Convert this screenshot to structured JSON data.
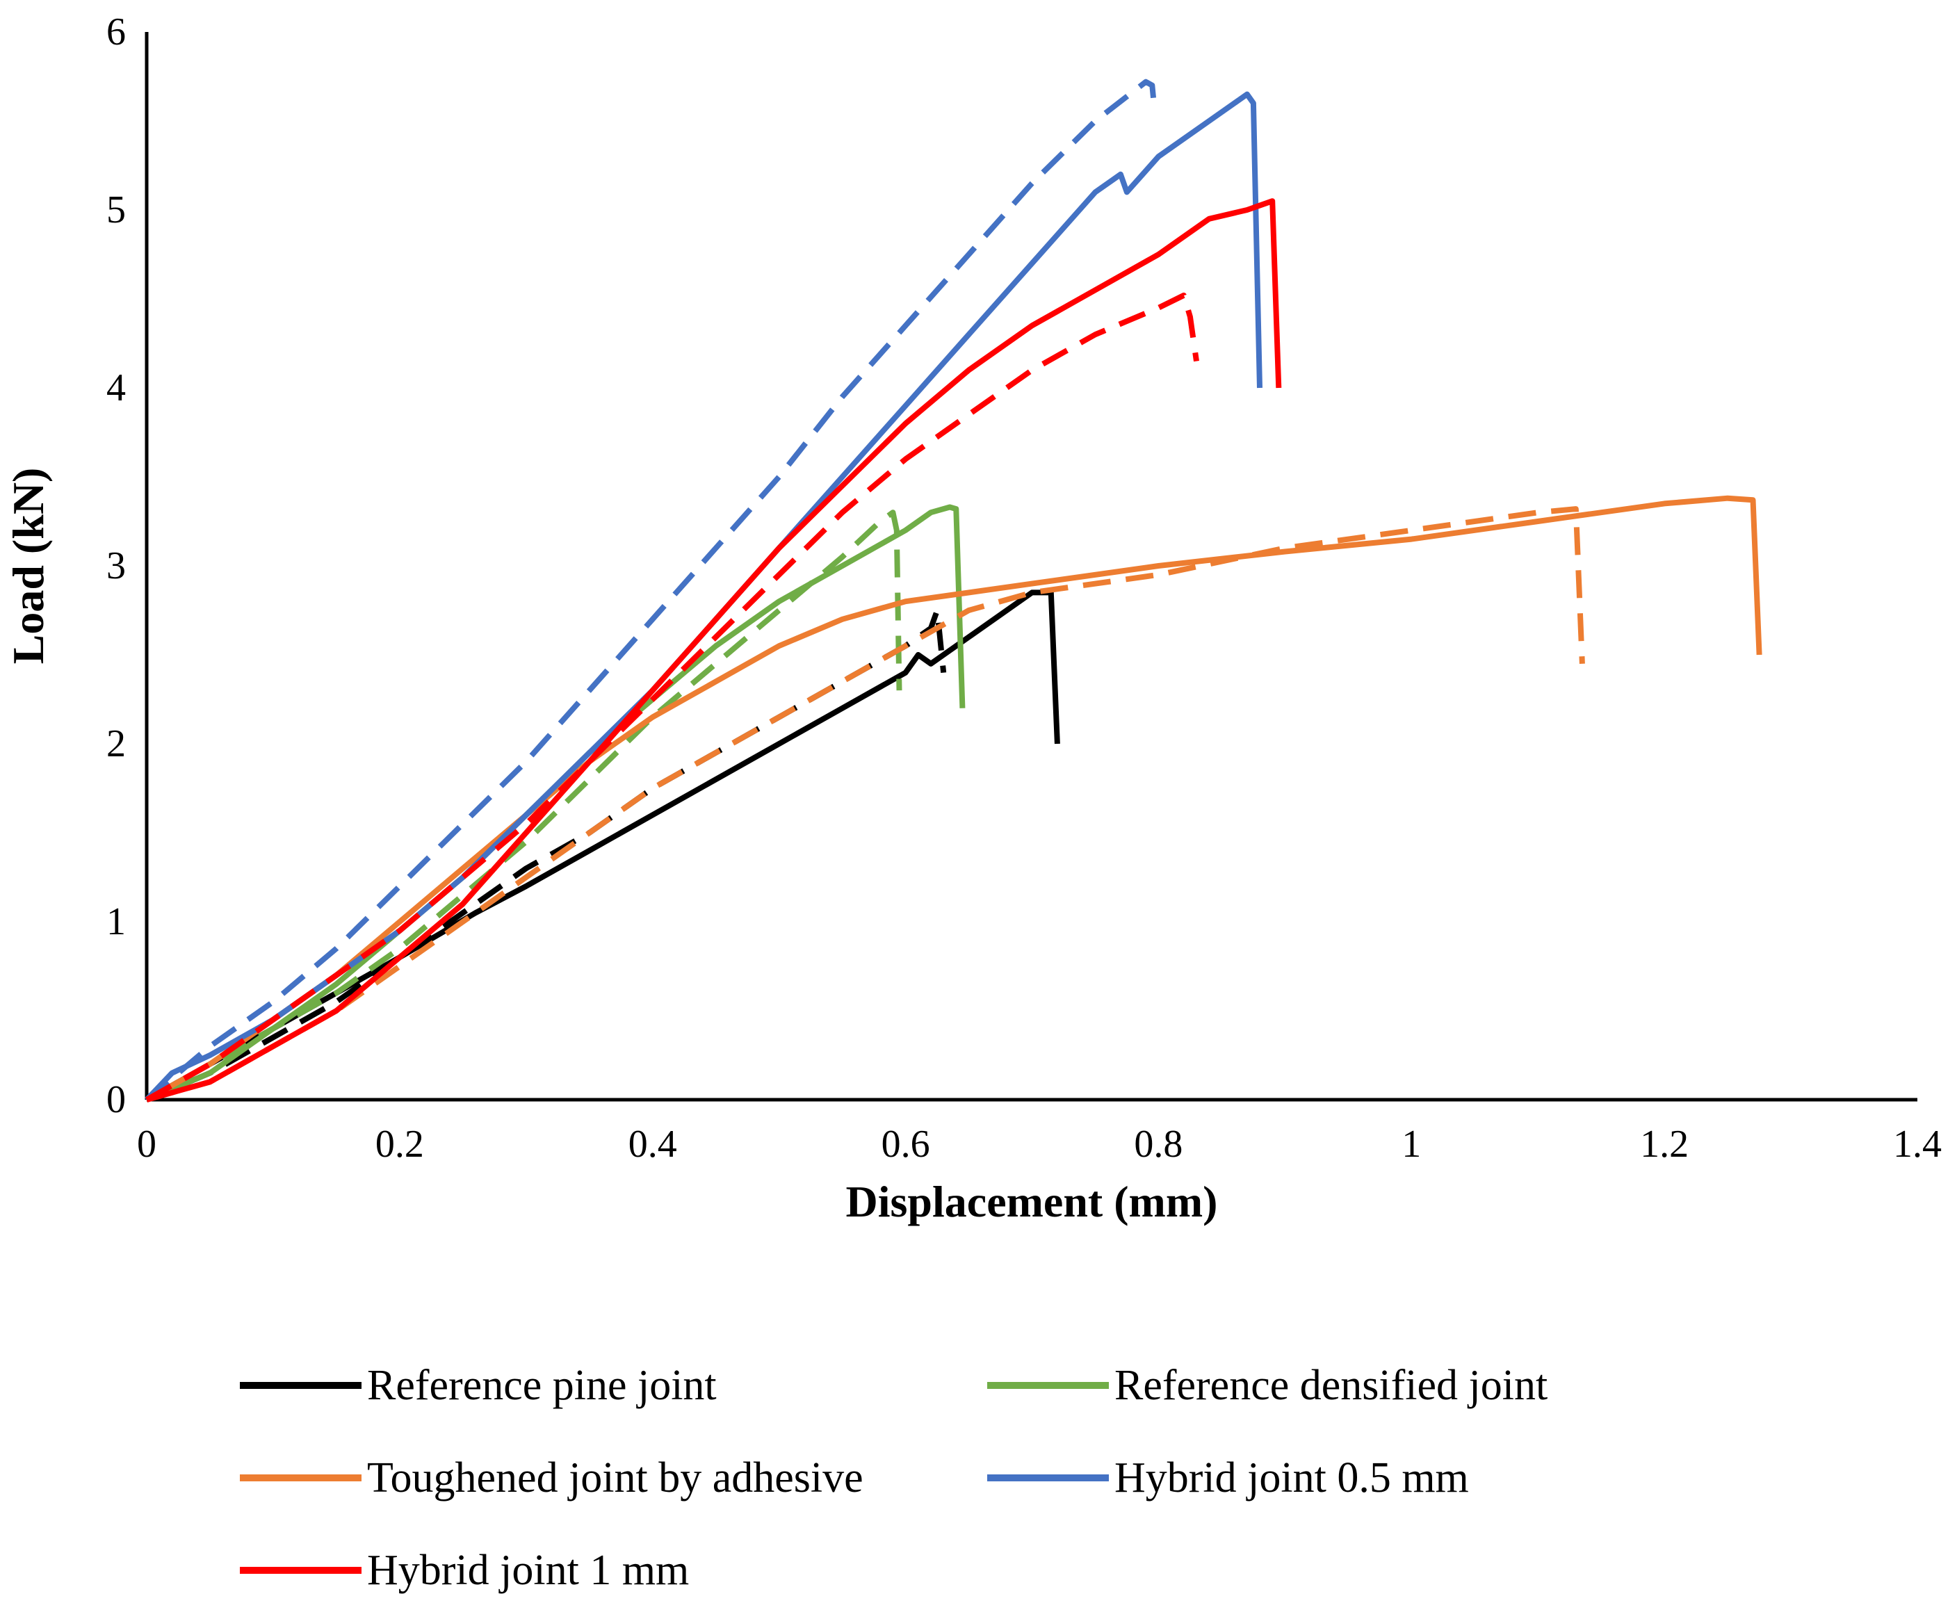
{
  "chart_data": {
    "type": "line",
    "title": "",
    "xlabel": "Displacement (mm)",
    "ylabel": "Load (kN)",
    "xlim": [
      0,
      1.4
    ],
    "ylim": [
      0,
      6
    ],
    "x_ticks": [
      "0",
      "0.2",
      "0.4",
      "0.6",
      "0.8",
      "1",
      "1.2",
      "1.4"
    ],
    "y_ticks": [
      "0",
      "1",
      "2",
      "3",
      "4",
      "5",
      "6"
    ],
    "grid": false,
    "legend_position": "bottom",
    "series": [
      {
        "name": "Reference pine joint",
        "color": "#000000",
        "points": [
          [
            0,
            0
          ],
          [
            0.05,
            0.2
          ],
          [
            0.1,
            0.4
          ],
          [
            0.15,
            0.6
          ],
          [
            0.2,
            0.8
          ],
          [
            0.26,
            1.05
          ],
          [
            0.3,
            1.2
          ],
          [
            0.35,
            1.4
          ],
          [
            0.4,
            1.6
          ],
          [
            0.5,
            2.0
          ],
          [
            0.6,
            2.4
          ],
          [
            0.61,
            2.5
          ],
          [
            0.62,
            2.45
          ],
          [
            0.63,
            2.5
          ],
          [
            0.7,
            2.85
          ],
          [
            0.715,
            2.85
          ],
          [
            0.72,
            2.0
          ]
        ],
        "dashed": [
          [
            0,
            0
          ],
          [
            0.05,
            0.15
          ],
          [
            0.1,
            0.35
          ],
          [
            0.15,
            0.55
          ],
          [
            0.2,
            0.8
          ],
          [
            0.25,
            1.05
          ],
          [
            0.3,
            1.3
          ],
          [
            0.35,
            1.5
          ],
          [
            0.4,
            1.75
          ],
          [
            0.45,
            1.95
          ],
          [
            0.5,
            2.15
          ],
          [
            0.55,
            2.35
          ],
          [
            0.6,
            2.55
          ],
          [
            0.62,
            2.65
          ],
          [
            0.625,
            2.75
          ],
          [
            0.63,
            2.4
          ]
        ]
      },
      {
        "name": "Reference densified joint",
        "color": "#70ad47",
        "points": [
          [
            0,
            0
          ],
          [
            0.05,
            0.15
          ],
          [
            0.1,
            0.4
          ],
          [
            0.15,
            0.65
          ],
          [
            0.2,
            0.95
          ],
          [
            0.25,
            1.25
          ],
          [
            0.3,
            1.6
          ],
          [
            0.35,
            1.95
          ],
          [
            0.4,
            2.25
          ],
          [
            0.45,
            2.55
          ],
          [
            0.5,
            2.8
          ],
          [
            0.55,
            3.0
          ],
          [
            0.6,
            3.2
          ],
          [
            0.62,
            3.3
          ],
          [
            0.635,
            3.33
          ],
          [
            0.64,
            3.32
          ],
          [
            0.645,
            2.2
          ]
        ],
        "dashed": [
          [
            0,
            0
          ],
          [
            0.05,
            0.2
          ],
          [
            0.1,
            0.4
          ],
          [
            0.15,
            0.6
          ],
          [
            0.2,
            0.85
          ],
          [
            0.25,
            1.15
          ],
          [
            0.3,
            1.45
          ],
          [
            0.35,
            1.8
          ],
          [
            0.4,
            2.15
          ],
          [
            0.45,
            2.45
          ],
          [
            0.5,
            2.75
          ],
          [
            0.55,
            3.05
          ],
          [
            0.58,
            3.25
          ],
          [
            0.59,
            3.3
          ],
          [
            0.593,
            3.2
          ],
          [
            0.595,
            2.3
          ]
        ]
      },
      {
        "name": "Toughened joint by adhesive",
        "color": "#ed7d31",
        "points": [
          [
            0,
            0
          ],
          [
            0.05,
            0.2
          ],
          [
            0.1,
            0.45
          ],
          [
            0.15,
            0.7
          ],
          [
            0.2,
            1.0
          ],
          [
            0.25,
            1.3
          ],
          [
            0.3,
            1.6
          ],
          [
            0.35,
            1.9
          ],
          [
            0.4,
            2.15
          ],
          [
            0.45,
            2.35
          ],
          [
            0.5,
            2.55
          ],
          [
            0.55,
            2.7
          ],
          [
            0.6,
            2.8
          ],
          [
            0.7,
            2.9
          ],
          [
            0.8,
            3.0
          ],
          [
            0.9,
            3.08
          ],
          [
            1.0,
            3.15
          ],
          [
            1.1,
            3.25
          ],
          [
            1.2,
            3.35
          ],
          [
            1.25,
            3.38
          ],
          [
            1.27,
            3.37
          ],
          [
            1.275,
            2.5
          ]
        ],
        "dashed": [
          [
            0,
            0
          ],
          [
            0.05,
            0.1
          ],
          [
            0.1,
            0.3
          ],
          [
            0.15,
            0.5
          ],
          [
            0.2,
            0.75
          ],
          [
            0.25,
            1.0
          ],
          [
            0.3,
            1.25
          ],
          [
            0.35,
            1.5
          ],
          [
            0.4,
            1.75
          ],
          [
            0.45,
            1.95
          ],
          [
            0.5,
            2.15
          ],
          [
            0.55,
            2.35
          ],
          [
            0.6,
            2.55
          ],
          [
            0.65,
            2.75
          ],
          [
            0.7,
            2.85
          ],
          [
            0.8,
            2.95
          ],
          [
            0.9,
            3.1
          ],
          [
            1.0,
            3.2
          ],
          [
            1.1,
            3.3
          ],
          [
            1.13,
            3.32
          ],
          [
            1.135,
            2.45
          ]
        ]
      },
      {
        "name": "Hybrid joint 0.5 mm",
        "color": "#4472c4",
        "points": [
          [
            0,
            0
          ],
          [
            0.02,
            0.15
          ],
          [
            0.05,
            0.25
          ],
          [
            0.1,
            0.45
          ],
          [
            0.15,
            0.7
          ],
          [
            0.2,
            0.95
          ],
          [
            0.25,
            1.25
          ],
          [
            0.3,
            1.6
          ],
          [
            0.35,
            1.95
          ],
          [
            0.4,
            2.3
          ],
          [
            0.45,
            2.7
          ],
          [
            0.5,
            3.1
          ],
          [
            0.55,
            3.5
          ],
          [
            0.6,
            3.9
          ],
          [
            0.65,
            4.3
          ],
          [
            0.7,
            4.7
          ],
          [
            0.75,
            5.1
          ],
          [
            0.77,
            5.2
          ],
          [
            0.775,
            5.1
          ],
          [
            0.8,
            5.3
          ],
          [
            0.84,
            5.5
          ],
          [
            0.87,
            5.65
          ],
          [
            0.875,
            5.6
          ],
          [
            0.88,
            4.0
          ]
        ],
        "dashed": [
          [
            0,
            0
          ],
          [
            0.05,
            0.3
          ],
          [
            0.1,
            0.55
          ],
          [
            0.15,
            0.85
          ],
          [
            0.2,
            1.2
          ],
          [
            0.25,
            1.55
          ],
          [
            0.3,
            1.9
          ],
          [
            0.35,
            2.3
          ],
          [
            0.4,
            2.7
          ],
          [
            0.45,
            3.1
          ],
          [
            0.5,
            3.5
          ],
          [
            0.55,
            3.95
          ],
          [
            0.6,
            4.35
          ],
          [
            0.65,
            4.75
          ],
          [
            0.7,
            5.15
          ],
          [
            0.75,
            5.5
          ],
          [
            0.79,
            5.72
          ],
          [
            0.795,
            5.7
          ],
          [
            0.797,
            5.55
          ]
        ]
      },
      {
        "name": "Hybrid joint 1 mm",
        "color": "#ff0000",
        "points": [
          [
            0,
            0
          ],
          [
            0.05,
            0.1
          ],
          [
            0.1,
            0.3
          ],
          [
            0.15,
            0.5
          ],
          [
            0.2,
            0.8
          ],
          [
            0.25,
            1.1
          ],
          [
            0.3,
            1.5
          ],
          [
            0.35,
            1.9
          ],
          [
            0.4,
            2.3
          ],
          [
            0.45,
            2.7
          ],
          [
            0.5,
            3.1
          ],
          [
            0.55,
            3.45
          ],
          [
            0.6,
            3.8
          ],
          [
            0.65,
            4.1
          ],
          [
            0.7,
            4.35
          ],
          [
            0.75,
            4.55
          ],
          [
            0.8,
            4.75
          ],
          [
            0.84,
            4.95
          ],
          [
            0.87,
            5.0
          ],
          [
            0.89,
            5.05
          ],
          [
            0.895,
            4.0
          ]
        ],
        "dashed": [
          [
            0,
            0
          ],
          [
            0.05,
            0.2
          ],
          [
            0.1,
            0.45
          ],
          [
            0.15,
            0.7
          ],
          [
            0.2,
            0.95
          ],
          [
            0.25,
            1.25
          ],
          [
            0.3,
            1.55
          ],
          [
            0.35,
            1.9
          ],
          [
            0.4,
            2.25
          ],
          [
            0.45,
            2.6
          ],
          [
            0.5,
            2.95
          ],
          [
            0.55,
            3.3
          ],
          [
            0.6,
            3.6
          ],
          [
            0.65,
            3.85
          ],
          [
            0.7,
            4.1
          ],
          [
            0.75,
            4.3
          ],
          [
            0.8,
            4.45
          ],
          [
            0.82,
            4.52
          ],
          [
            0.825,
            4.4
          ],
          [
            0.83,
            4.15
          ]
        ]
      }
    ]
  }
}
